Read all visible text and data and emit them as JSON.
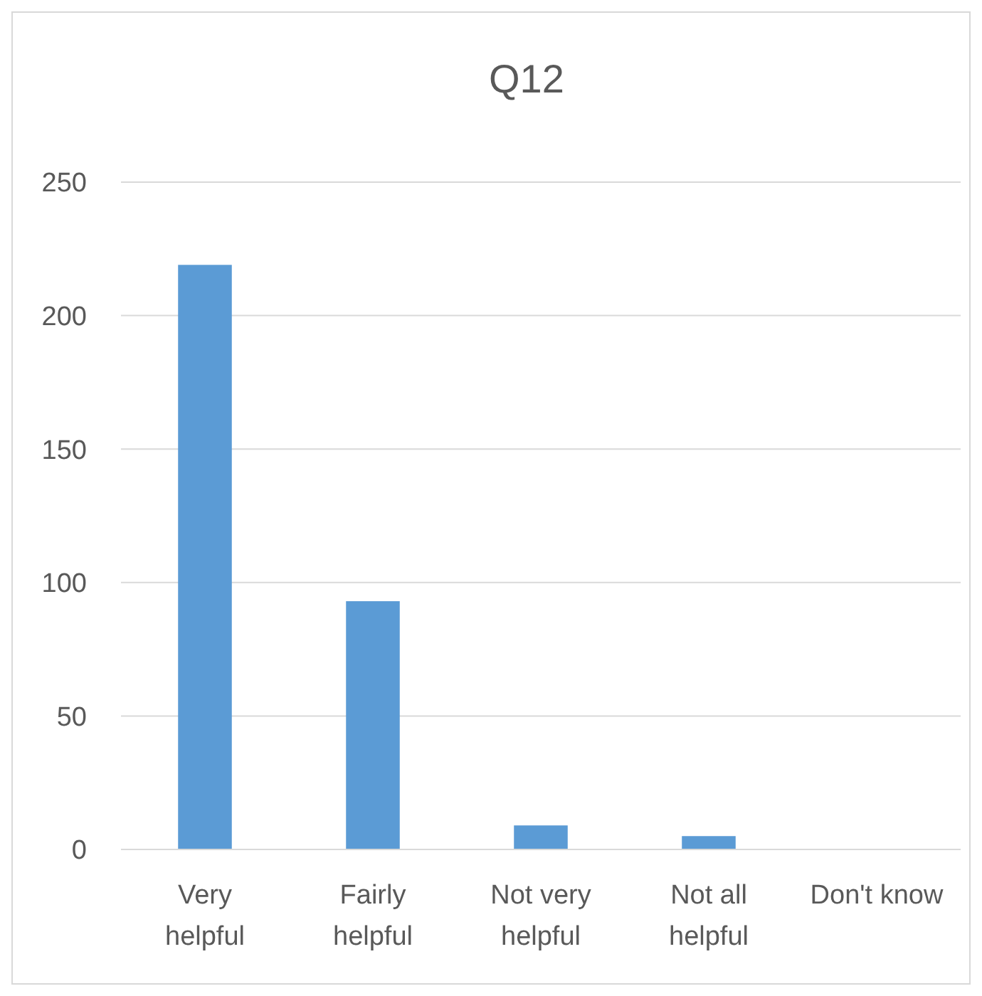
{
  "chart_data": {
    "type": "bar",
    "title": "Q12",
    "categories": [
      "Very helpful",
      "Fairly helpful",
      "Not very helpful",
      "Not all helpful",
      "Don't know"
    ],
    "values": [
      219,
      93,
      9,
      5,
      0
    ],
    "color": "#5b9bd5",
    "ylim": [
      0,
      250
    ],
    "yticks": [
      0,
      50,
      100,
      150,
      200,
      250
    ],
    "grid": "y"
  }
}
